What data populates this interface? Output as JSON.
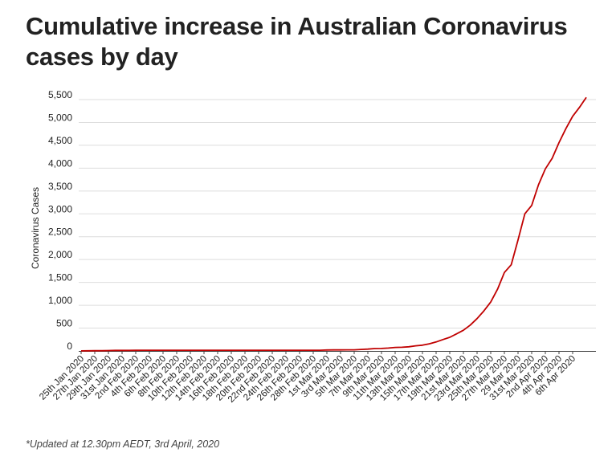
{
  "title": "Cumulative increase in Australian Coronavirus cases by day",
  "footnote": "*Updated at 12.30pm AEDT, 3rd April, 2020",
  "colors": {
    "line": "#c00000",
    "grid": "#dddddd",
    "text": "#222222",
    "axis": "#444444"
  },
  "chart_data": {
    "type": "line",
    "title": "Cumulative increase in Australian Coronavirus cases by day",
    "xlabel": "",
    "ylabel": "Coronavirus Cases",
    "ylim": [
      0,
      5500
    ],
    "yticks": [
      0,
      500,
      1000,
      1500,
      2000,
      2500,
      3000,
      3500,
      4000,
      4500,
      5000,
      5500
    ],
    "ytick_labels": [
      "0",
      "500",
      "1,000",
      "1,500",
      "2,000",
      "2,500",
      "3,000",
      "3,500",
      "4,000",
      "4,500",
      "5,000",
      "5,500"
    ],
    "grid": true,
    "x_tick_labels": [
      "25th Jan 2020",
      "27th Jan 2020",
      "29th Jan 2020",
      "31st Jan 2020",
      "2nd Feb 2020",
      "4th Feb 2020",
      "6th Feb 2020",
      "8th Feb 2020",
      "10th Feb 2020",
      "12th Feb 2020",
      "14th Feb 2020",
      "16th Feb 2020",
      "18th Feb 2020",
      "20th Feb 2020",
      "22nd Feb 2020",
      "24th Feb 2020",
      "26th Feb 2020",
      "28th Feb 2020",
      "1st Mar 2020",
      "3rd Mar 2020",
      "5th Mar 2020",
      "7th Mar 2020",
      "9th Mar 2020",
      "11th Mar 2020",
      "13th Mar 2020",
      "15th Mar 2020",
      "17th Mar 2020",
      "19th Mar 2020",
      "21st Mar 2020",
      "23rd Mar 2020",
      "25th Mar 2020",
      "27th Mar 2020",
      "29 Mar 2020",
      "31st Mar 2020",
      "2nd Apr 2020",
      "4th Apr 2020",
      "6th Apr 2020"
    ],
    "series": [
      {
        "values": [
          1,
          4,
          5,
          5,
          9,
          12,
          12,
          13,
          14,
          15,
          15,
          15,
          15,
          15,
          15,
          15,
          15,
          15,
          15,
          15,
          15,
          15,
          15,
          15,
          15,
          15,
          15,
          15,
          15,
          15,
          15,
          15,
          15,
          15,
          15,
          15,
          21,
          22,
          23,
          25,
          25,
          33,
          40,
          52,
          55,
          63,
          77,
          80,
          92,
          112,
          126,
          156,
          197,
          249,
          298,
          375,
          454,
          566,
          709,
          876,
          1071,
          1352,
          1717,
          1886,
          2431,
          3002,
          3184,
          3637,
          3984,
          4216,
          4559,
          4862,
          5134,
          5330,
          5550
        ]
      }
    ]
  }
}
